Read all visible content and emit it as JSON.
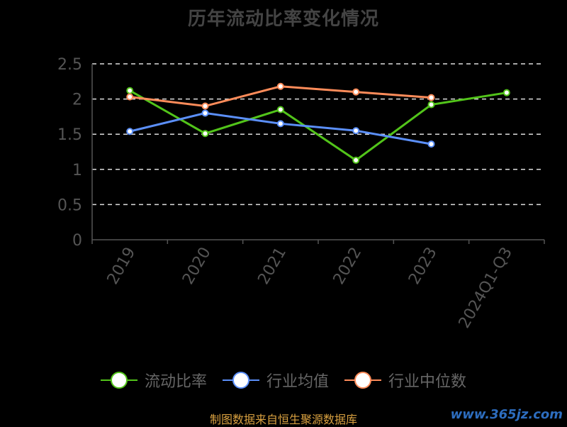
{
  "chart_data": {
    "type": "line",
    "title": "历年流动比率变化情况",
    "categories": [
      "2019",
      "2020",
      "2021",
      "2022",
      "2023",
      "2024Q1-Q3"
    ],
    "series": [
      {
        "name": "流动比率",
        "color": "#52c41a",
        "values": [
          2.12,
          1.51,
          1.85,
          1.13,
          1.92,
          2.09
        ]
      },
      {
        "name": "行业均值",
        "color": "#5b8ff9",
        "values": [
          1.54,
          1.8,
          1.65,
          1.55,
          1.36,
          null
        ]
      },
      {
        "name": "行业中位数",
        "color": "#ff8c5a",
        "values": [
          2.03,
          1.9,
          2.18,
          2.1,
          2.02,
          null
        ]
      }
    ],
    "ylim": [
      0,
      2.5
    ],
    "yticks": [
      "0",
      "0.5",
      "1",
      "1.5",
      "2",
      "2.5"
    ],
    "grid": true,
    "legend_position": "bottom"
  },
  "footer": {
    "source": "制图数据来自恒生聚源数据库",
    "watermark": "www.365jz.com"
  }
}
